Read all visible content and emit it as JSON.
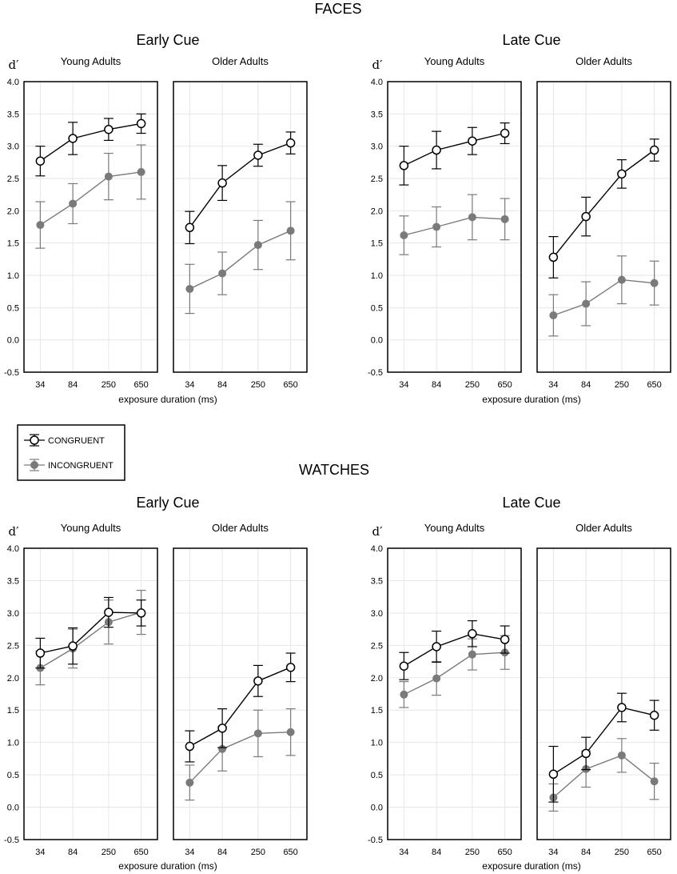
{
  "figure": {
    "x_label": "exposure duration (ms)",
    "y_label": "d′",
    "colors": {
      "congruent": "#000000",
      "incongruent": "#7a7a7a",
      "grid": "#e6e6e6"
    }
  },
  "legend": {
    "congruent_label": "CONGRUENT",
    "incongruent_label": "INCONGRUENT"
  },
  "chart_data": [
    {
      "type": "line",
      "section": "FACES",
      "title": "Early Cue",
      "ylabel": "d′",
      "xlabel": "exposure duration (ms)",
      "ylim": [
        -0.5,
        4.0
      ],
      "yticks": [
        "4.0",
        "3.5",
        "3.0",
        "2.5",
        "2.0",
        "1.5",
        "1.0",
        "0.5",
        "0.0",
        "-0.5"
      ],
      "categories": [
        "34",
        "84",
        "250",
        "650"
      ],
      "panels": [
        {
          "title": "Young Adults",
          "series": [
            {
              "name": "CONGRUENT",
              "values": [
                2.77,
                3.12,
                3.26,
                3.35
              ],
              "errors": [
                0.23,
                0.25,
                0.17,
                0.15
              ]
            },
            {
              "name": "INCONGRUENT",
              "values": [
                1.78,
                2.11,
                2.53,
                2.6
              ],
              "errors": [
                0.36,
                0.31,
                0.36,
                0.42
              ]
            }
          ]
        },
        {
          "title": "Older Adults",
          "series": [
            {
              "name": "CONGRUENT",
              "values": [
                1.74,
                2.43,
                2.86,
                3.05
              ],
              "errors": [
                0.25,
                0.27,
                0.17,
                0.17
              ]
            },
            {
              "name": "INCONGRUENT",
              "values": [
                0.79,
                1.03,
                1.47,
                1.69
              ],
              "errors": [
                0.38,
                0.33,
                0.38,
                0.45
              ]
            }
          ]
        }
      ]
    },
    {
      "type": "line",
      "section": "FACES",
      "title": "Late Cue",
      "ylabel": "d′",
      "xlabel": "exposure duration (ms)",
      "ylim": [
        -0.5,
        4.0
      ],
      "yticks": [
        "4.0",
        "3.5",
        "3.0",
        "2.5",
        "2.0",
        "1.5",
        "1.0",
        "0.5",
        "0.0",
        "-0.5"
      ],
      "categories": [
        "34",
        "84",
        "250",
        "650"
      ],
      "panels": [
        {
          "title": "Young Adults",
          "series": [
            {
              "name": "CONGRUENT",
              "values": [
                2.7,
                2.94,
                3.08,
                3.2
              ],
              "errors": [
                0.3,
                0.29,
                0.21,
                0.16
              ]
            },
            {
              "name": "INCONGRUENT",
              "values": [
                1.62,
                1.75,
                1.9,
                1.87
              ],
              "errors": [
                0.3,
                0.31,
                0.35,
                0.32
              ]
            }
          ]
        },
        {
          "title": "Older Adults",
          "series": [
            {
              "name": "CONGRUENT",
              "values": [
                1.28,
                1.91,
                2.57,
                2.94
              ],
              "errors": [
                0.32,
                0.3,
                0.22,
                0.17
              ]
            },
            {
              "name": "INCONGRUENT",
              "values": [
                0.38,
                0.56,
                0.93,
                0.88
              ],
              "errors": [
                0.32,
                0.34,
                0.37,
                0.34
              ]
            }
          ]
        }
      ]
    },
    {
      "type": "line",
      "section": "WATCHES",
      "title": "Early Cue",
      "ylabel": "d′",
      "xlabel": "exposure duration (ms)",
      "ylim": [
        -0.5,
        4.0
      ],
      "yticks": [
        "4.0",
        "3.5",
        "3.0",
        "2.5",
        "2.0",
        "1.5",
        "1.0",
        "0.5",
        "0.0",
        "-0.5"
      ],
      "categories": [
        "34",
        "84",
        "250",
        "650"
      ],
      "panels": [
        {
          "title": "Young Adults",
          "series": [
            {
              "name": "CONGRUENT",
              "values": [
                2.38,
                2.49,
                3.01,
                3.0
              ],
              "errors": [
                0.23,
                0.28,
                0.23,
                0.2
              ]
            },
            {
              "name": "INCONGRUENT",
              "values": [
                2.15,
                2.45,
                2.86,
                3.01
              ],
              "errors": [
                0.26,
                0.3,
                0.34,
                0.34
              ]
            }
          ]
        },
        {
          "title": "Older Adults",
          "series": [
            {
              "name": "CONGRUENT",
              "values": [
                0.94,
                1.22,
                1.95,
                2.16
              ],
              "errors": [
                0.24,
                0.3,
                0.24,
                0.22
              ]
            },
            {
              "name": "INCONGRUENT",
              "values": [
                0.38,
                0.9,
                1.14,
                1.16
              ],
              "errors": [
                0.27,
                0.34,
                0.36,
                0.36
              ]
            }
          ]
        }
      ]
    },
    {
      "type": "line",
      "section": "WATCHES",
      "title": "Late Cue",
      "ylabel": "d′",
      "xlabel": "exposure duration (ms)",
      "ylim": [
        -0.5,
        4.0
      ],
      "yticks": [
        "4.0",
        "3.5",
        "3.0",
        "2.5",
        "2.0",
        "1.5",
        "1.0",
        "0.5",
        "0.0",
        "-0.5"
      ],
      "categories": [
        "34",
        "84",
        "250",
        "650"
      ],
      "panels": [
        {
          "title": "Young Adults",
          "series": [
            {
              "name": "CONGRUENT",
              "values": [
                2.18,
                2.48,
                2.68,
                2.59
              ],
              "errors": [
                0.21,
                0.24,
                0.2,
                0.21
              ]
            },
            {
              "name": "INCONGRUENT",
              "values": [
                1.74,
                1.99,
                2.36,
                2.39
              ],
              "errors": [
                0.2,
                0.26,
                0.24,
                0.26
              ]
            }
          ]
        },
        {
          "title": "Older Adults",
          "series": [
            {
              "name": "CONGRUENT",
              "values": [
                0.51,
                0.83,
                1.54,
                1.42
              ],
              "errors": [
                0.43,
                0.25,
                0.22,
                0.23
              ]
            },
            {
              "name": "INCONGRUENT",
              "values": [
                0.15,
                0.59,
                0.8,
                0.4
              ],
              "errors": [
                0.21,
                0.28,
                0.26,
                0.28
              ]
            }
          ]
        }
      ]
    }
  ]
}
